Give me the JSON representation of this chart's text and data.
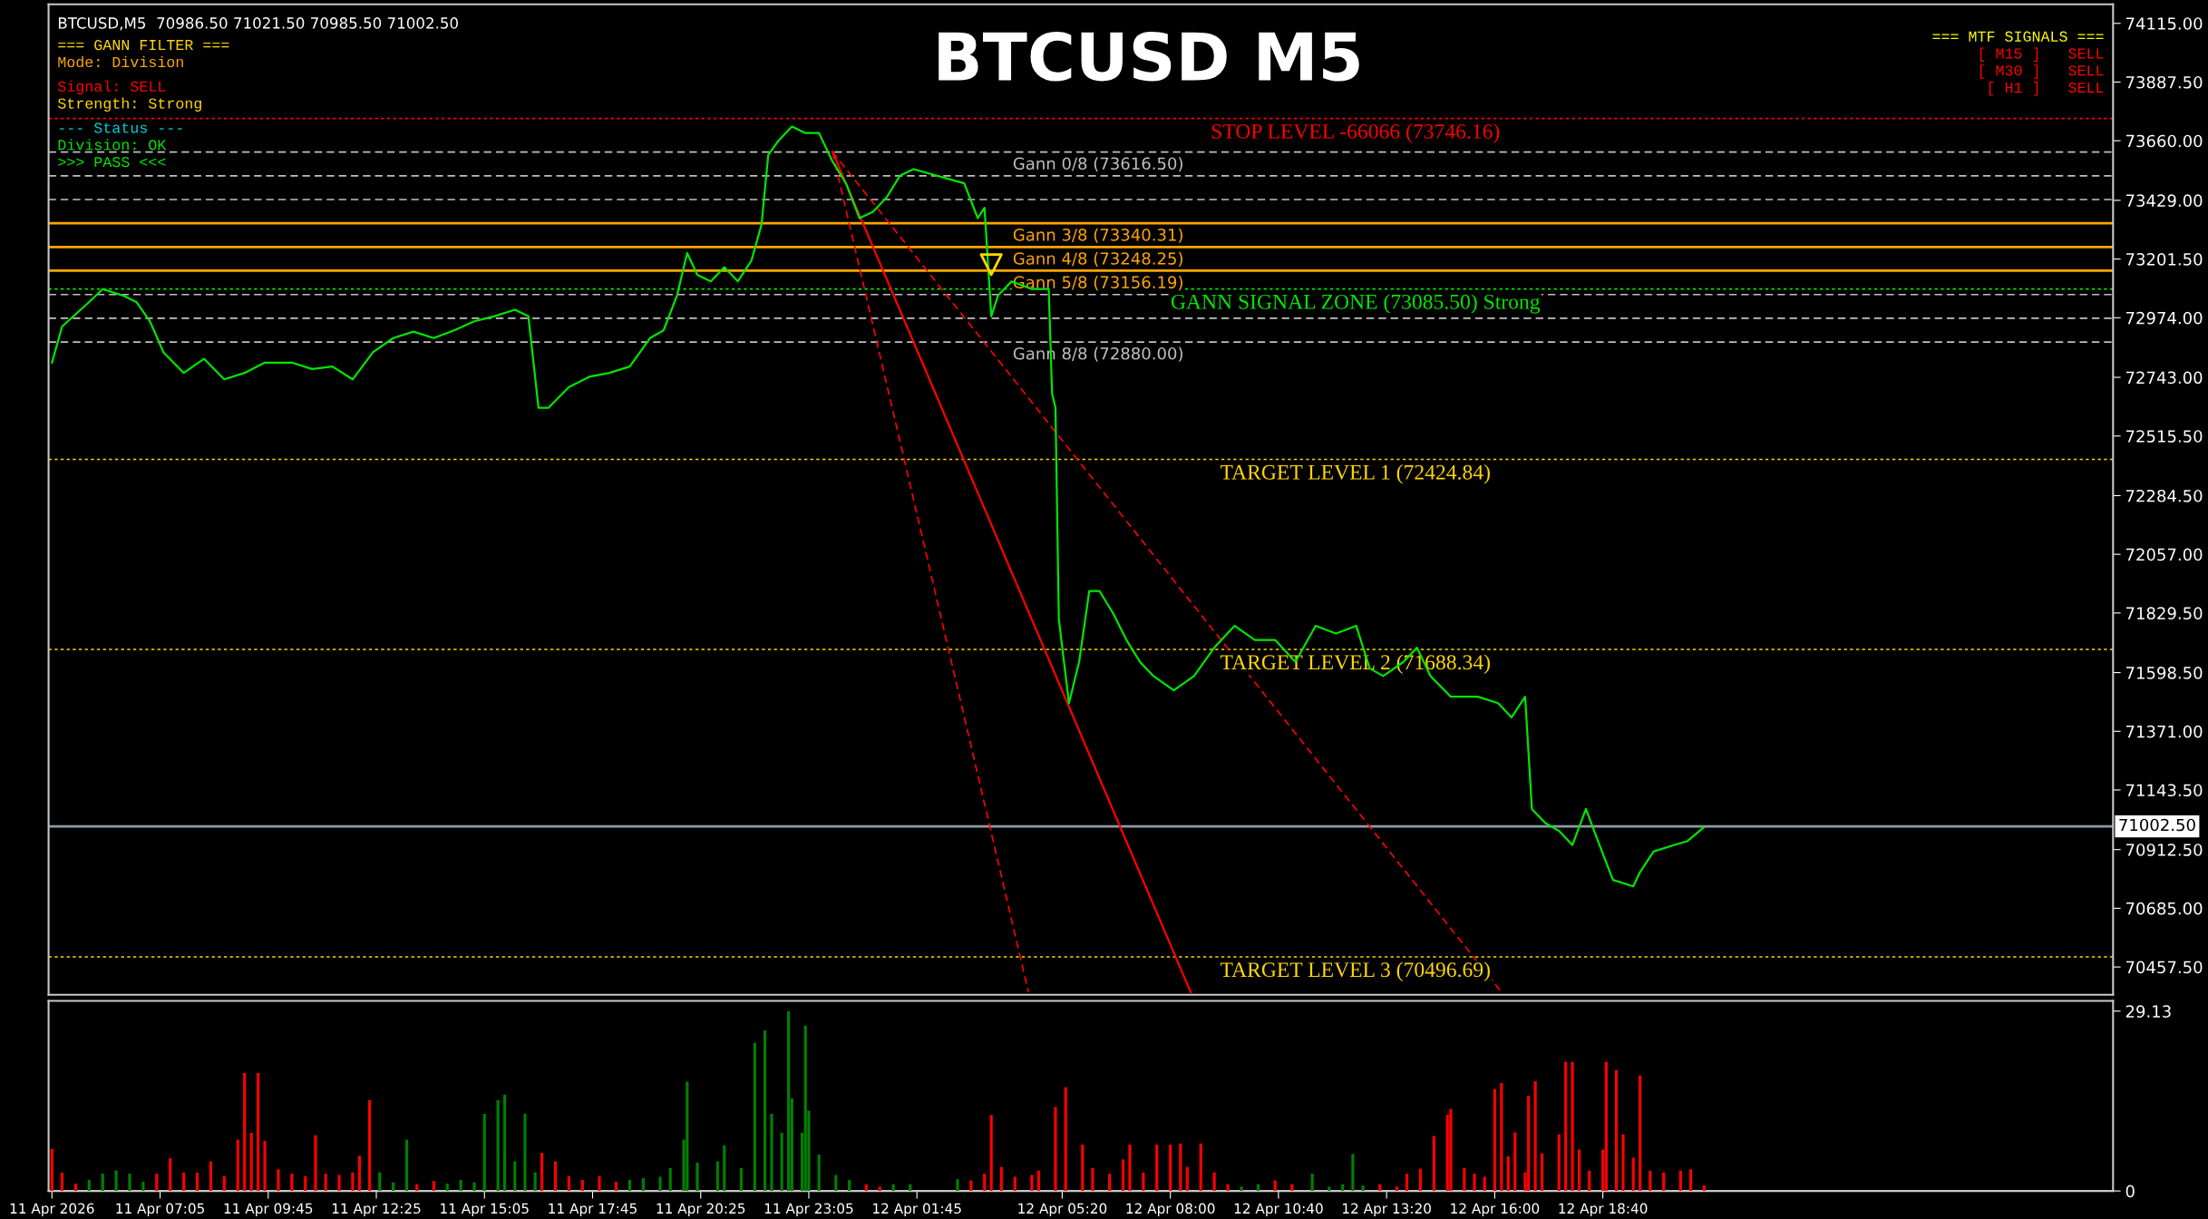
{
  "chart_data": [
    {
      "type": "line",
      "title": "BTCUSD M5",
      "annotations": [
        "BTCUSD,M5  70986.50 71021.50 70985.50 71002.50",
        "=== GANN FILTER ===",
        "Mode: Division",
        "Signal: SELL",
        "Strength: Strong",
        "--- Status ---",
        "Division: OK",
        ">>> PASS <<<",
        "=== MTF SIGNALS ===",
        "[ M15 ]   SELL",
        "[ M30 ]   SELL",
        "[ H1 ]   SELL"
      ],
      "xlim": [
        "2026-04-11T04:20",
        "2026-04-13T07:15"
      ],
      "ylim": [
        70350,
        74189
      ],
      "yticks": [
        {
          "value": 74115,
          "label": "74115.00"
        },
        {
          "value": 73887.5,
          "label": "73887.50"
        },
        {
          "value": 73660,
          "label": "73660.00"
        },
        {
          "value": 73429,
          "label": "73429.00"
        },
        {
          "value": 73201.5,
          "label": "73201.50"
        },
        {
          "value": 72974,
          "label": "72974.00"
        },
        {
          "value": 72743,
          "label": "72743.00"
        },
        {
          "value": 72515.5,
          "label": "72515.50"
        },
        {
          "value": 72284.5,
          "label": "72284.50"
        },
        {
          "value": 72057,
          "label": "72057.00"
        },
        {
          "value": 71829.5,
          "label": "71829.50"
        },
        {
          "value": 71598.5,
          "label": "71598.50"
        },
        {
          "value": 71371,
          "label": "71371.00"
        },
        {
          "value": 71143.5,
          "label": "71143.50"
        },
        {
          "value": 70912.5,
          "label": "70912.50"
        },
        {
          "value": 70685,
          "label": "70685.00"
        },
        {
          "value": 70457.5,
          "label": "70457.50"
        }
      ],
      "tick_labels": "y",
      "grid": false,
      "series": [
        {
          "type": "line",
          "color": "#00e600",
          "line_style": "solid",
          "x": [
            "2026-04-11T04:25",
            "2026-04-11T04:40",
            "2026-04-11T05:20",
            "2026-04-11T05:40",
            "2026-04-11T06:10",
            "2026-04-11T06:30",
            "2026-04-11T06:50",
            "2026-04-11T07:10",
            "2026-04-11T07:40",
            "2026-04-11T08:10",
            "2026-04-11T08:40",
            "2026-04-11T09:10",
            "2026-04-11T09:40",
            "2026-04-11T10:20",
            "2026-04-11T10:50",
            "2026-04-11T11:20",
            "2026-04-11T11:50",
            "2026-04-11T12:20",
            "2026-04-11T12:50",
            "2026-04-11T13:20",
            "2026-04-11T13:50",
            "2026-04-11T14:20",
            "2026-04-11T14:50",
            "2026-04-11T15:20",
            "2026-04-11T15:50",
            "2026-04-11T16:10",
            "2026-04-11T16:25",
            "2026-04-11T16:40",
            "2026-04-11T17:10",
            "2026-04-11T17:40",
            "2026-04-11T18:10",
            "2026-04-11T18:40",
            "2026-04-11T19:10",
            "2026-04-11T19:30",
            "2026-04-11T19:50",
            "2026-04-11T20:05",
            "2026-04-11T20:20",
            "2026-04-11T20:40",
            "2026-04-11T21:00",
            "2026-04-11T21:20",
            "2026-04-11T21:40",
            "2026-04-11T21:55",
            "2026-04-11T22:05",
            "2026-04-11T22:20",
            "2026-04-11T22:40",
            "2026-04-11T23:00",
            "2026-04-11T23:20",
            "2026-04-11T23:40",
            "2026-04-12T00:00",
            "2026-04-12T00:20",
            "2026-04-12T00:40",
            "2026-04-12T01:00",
            "2026-04-12T01:20",
            "2026-04-12T01:40",
            "2026-04-12T02:55",
            "2026-04-12T03:15",
            "2026-04-12T03:25",
            "2026-04-12T03:35",
            "2026-04-12T03:45",
            "2026-04-12T04:05",
            "2026-04-12T04:35",
            "2026-04-12T05:00",
            "2026-04-12T05:05",
            "2026-04-12T05:10",
            "2026-04-12T05:15",
            "2026-04-12T05:30",
            "2026-04-12T05:45",
            "2026-04-12T06:00",
            "2026-04-12T06:15",
            "2026-04-12T06:35",
            "2026-04-12T06:55",
            "2026-04-12T07:15",
            "2026-04-12T07:35",
            "2026-04-12T08:05",
            "2026-04-12T08:35",
            "2026-04-12T09:05",
            "2026-04-12T09:35",
            "2026-04-12T10:05",
            "2026-04-12T10:35",
            "2026-04-12T11:05",
            "2026-04-12T11:35",
            "2026-04-12T12:05",
            "2026-04-12T12:35",
            "2026-04-12T12:55",
            "2026-04-12T13:15",
            "2026-04-12T13:45",
            "2026-04-12T14:05",
            "2026-04-12T14:25",
            "2026-04-12T14:55",
            "2026-04-12T15:35",
            "2026-04-12T16:05",
            "2026-04-12T16:25",
            "2026-04-12T16:45",
            "2026-04-12T16:55",
            "2026-04-12T17:15",
            "2026-04-12T17:35",
            "2026-04-12T17:55",
            "2026-04-12T18:15",
            "2026-04-12T18:35",
            "2026-04-12T18:55",
            "2026-04-12T19:25",
            "2026-04-12T19:35",
            "2026-04-12T19:55",
            "2026-04-12T20:25",
            "2026-04-12T20:45",
            "2026-04-12T21:10"
          ],
          "values": [
            72800,
            72940,
            73035,
            73085,
            73060,
            73035,
            72960,
            72840,
            72760,
            72815,
            72735,
            72760,
            72800,
            72800,
            72775,
            72785,
            72735,
            72840,
            72895,
            72920,
            72895,
            72925,
            72960,
            72980,
            73005,
            72980,
            72625,
            72625,
            72705,
            72745,
            72760,
            72785,
            72895,
            72925,
            73060,
            73225,
            73140,
            73115,
            73170,
            73115,
            73195,
            73335,
            73605,
            73660,
            73715,
            73690,
            73690,
            73580,
            73495,
            73360,
            73385,
            73440,
            73525,
            73550,
            73495,
            73360,
            73400,
            72980,
            73060,
            73115,
            73085,
            73085,
            72680,
            72625,
            71805,
            71480,
            71640,
            71915,
            71915,
            71830,
            71725,
            71640,
            71585,
            71530,
            71585,
            71695,
            71780,
            71725,
            71725,
            71640,
            71780,
            71750,
            71780,
            71615,
            71585,
            71640,
            71695,
            71585,
            71505,
            71505,
            71480,
            71425,
            71505,
            71070,
            71015,
            70985,
            70930,
            71070,
            70930,
            70795,
            70770,
            70825,
            70905,
            70930,
            70945,
            71000
          ]
        },
        {
          "type": "line",
          "color": "#ff0000",
          "line_style": "solid",
          "x": [
            "2026-04-11T23:40",
            "2026-04-12T08:30"
          ],
          "values": [
            73617,
            70360
          ]
        },
        {
          "type": "line",
          "color": "#ff0000",
          "line_style": "dashed",
          "x": [
            "2026-04-11T23:40",
            "2026-04-12T04:30"
          ],
          "values": [
            73617,
            70360
          ]
        },
        {
          "type": "line",
          "color": "#ff0000",
          "line_style": "dashed",
          "x": [
            "2026-04-11T23:40",
            "2026-04-12T16:10"
          ],
          "values": [
            73617,
            70360
          ]
        },
        {
          "type": "scatter",
          "color": "#ffd700",
          "marker": "triangle",
          "x": [
            "2026-04-12T03:35"
          ],
          "values": [
            73180
          ]
        }
      ],
      "ref_lines": [
        {
          "axis": "y",
          "value": 73746.16,
          "label": "STOP LEVEL -66066 (73746.16)",
          "color": "#ff0000",
          "line_style": "dotted"
        },
        {
          "axis": "y",
          "value": 73616.5,
          "label": "Gann 0/8 (73616.50)",
          "color": "#c0c0c0",
          "line_style": "dashed"
        },
        {
          "axis": "y",
          "value": 73524,
          "label": null,
          "color": "#c0c0c0",
          "line_style": "dashed"
        },
        {
          "axis": "y",
          "value": 73432,
          "label": null,
          "color": "#c0c0c0",
          "line_style": "dashed"
        },
        {
          "axis": "y",
          "value": 73340.31,
          "label": "Gann 3/8 (73340.31)",
          "color": "#ffa500",
          "line_style": "solid"
        },
        {
          "axis": "y",
          "value": 73248.25,
          "label": "Gann 4/8 (73248.25)",
          "color": "#ffa500",
          "line_style": "solid"
        },
        {
          "axis": "y",
          "value": 73156.19,
          "label": "Gann 5/8 (73156.19)",
          "color": "#ffa500",
          "line_style": "solid"
        },
        {
          "axis": "y",
          "value": 73085.5,
          "label": "GANN SIGNAL ZONE (73085.50) Strong",
          "color": "#00e600",
          "line_style": "dotted"
        },
        {
          "axis": "y",
          "value": 73064,
          "label": null,
          "color": "#c0c0c0",
          "line_style": "dashed"
        },
        {
          "axis": "y",
          "value": 72972,
          "label": null,
          "color": "#c0c0c0",
          "line_style": "dashed"
        },
        {
          "axis": "y",
          "value": 72880,
          "label": "Gann 8/8 (72880.00)",
          "color": "#c0c0c0",
          "line_style": "dashed"
        },
        {
          "axis": "y",
          "value": 72424.84,
          "label": "TARGET LEVEL 1 (72424.84)",
          "color": "#ffd700",
          "line_style": "dotted"
        },
        {
          "axis": "y",
          "value": 71688.34,
          "label": "TARGET LEVEL 2 (71688.34)",
          "color": "#ffd700",
          "line_style": "dotted"
        },
        {
          "axis": "y",
          "value": 70496.69,
          "label": "TARGET LEVEL 3 (70496.69)",
          "color": "#ffd700",
          "line_style": "dotted"
        },
        {
          "axis": "y",
          "value": 71002.5,
          "label": "71002.50",
          "color": "#8c9aa8",
          "line_style": "solid"
        }
      ]
    },
    {
      "type": "bar",
      "xlim": [
        "2026-04-11T04:20",
        "2026-04-13T07:15"
      ],
      "xticks": [
        {
          "value": "2026-04-11T04:25",
          "label": "11 Apr 2026"
        },
        {
          "value": "2026-04-11T07:05",
          "label": "11 Apr 07:05"
        },
        {
          "value": "2026-04-11T09:45",
          "label": "11 Apr 09:45"
        },
        {
          "value": "2026-04-11T12:25",
          "label": "11 Apr 12:25"
        },
        {
          "value": "2026-04-11T15:05",
          "label": "11 Apr 15:05"
        },
        {
          "value": "2026-04-11T17:45",
          "label": "11 Apr 17:45"
        },
        {
          "value": "2026-04-11T20:25",
          "label": "11 Apr 20:25"
        },
        {
          "value": "2026-04-11T23:05",
          "label": "11 Apr 23:05"
        },
        {
          "value": "2026-04-12T01:45",
          "label": "12 Apr 01:45"
        },
        {
          "value": "2026-04-12T05:20",
          "label": "12 Apr 05:20"
        },
        {
          "value": "2026-04-12T08:00",
          "label": "12 Apr 08:00"
        },
        {
          "value": "2026-04-12T10:40",
          "label": "12 Apr 10:40"
        },
        {
          "value": "2026-04-12T13:20",
          "label": "12 Apr 13:20"
        },
        {
          "value": "2026-04-12T16:00",
          "label": "12 Apr 16:00"
        },
        {
          "value": "2026-04-12T18:40",
          "label": "12 Apr 18:40"
        }
      ],
      "ylim": [
        0,
        30.8
      ],
      "yticks": [
        0,
        29.13
      ],
      "grid": false,
      "x": [
        "2026-04-11T04:25",
        "2026-04-11T04:40",
        "2026-04-11T05:00",
        "2026-04-11T05:20",
        "2026-04-11T05:40",
        "2026-04-11T06:00",
        "2026-04-11T06:20",
        "2026-04-11T06:40",
        "2026-04-11T07:00",
        "2026-04-11T07:20",
        "2026-04-11T07:40",
        "2026-04-11T08:00",
        "2026-04-11T08:20",
        "2026-04-11T08:40",
        "2026-04-11T09:00",
        "2026-04-11T09:10",
        "2026-04-11T09:20",
        "2026-04-11T09:30",
        "2026-04-11T09:40",
        "2026-04-11T10:00",
        "2026-04-11T10:20",
        "2026-04-11T10:40",
        "2026-04-11T10:55",
        "2026-04-11T11:10",
        "2026-04-11T11:30",
        "2026-04-11T11:50",
        "2026-04-11T12:00",
        "2026-04-11T12:15",
        "2026-04-11T12:30",
        "2026-04-11T12:50",
        "2026-04-11T13:10",
        "2026-04-11T13:25",
        "2026-04-11T13:50",
        "2026-04-11T14:10",
        "2026-04-11T14:30",
        "2026-04-11T14:50",
        "2026-04-11T15:05",
        "2026-04-11T15:25",
        "2026-04-11T15:35",
        "2026-04-11T15:50",
        "2026-04-11T16:05",
        "2026-04-11T16:20",
        "2026-04-11T16:30",
        "2026-04-11T16:50",
        "2026-04-11T17:10",
        "2026-04-11T17:30",
        "2026-04-11T17:55",
        "2026-04-11T18:20",
        "2026-04-11T18:40",
        "2026-04-11T19:00",
        "2026-04-11T19:25",
        "2026-04-11T19:40",
        "2026-04-11T20:00",
        "2026-04-11T20:05",
        "2026-04-11T20:20",
        "2026-04-11T20:50",
        "2026-04-11T21:00",
        "2026-04-11T21:25",
        "2026-04-11T21:45",
        "2026-04-11T22:00",
        "2026-04-11T22:10",
        "2026-04-11T22:25",
        "2026-04-11T22:35",
        "2026-04-11T22:40",
        "2026-04-11T22:55",
        "2026-04-11T23:00",
        "2026-04-11T23:05",
        "2026-04-11T23:20",
        "2026-04-11T23:45",
        "2026-04-12T00:05",
        "2026-04-12T00:30",
        "2026-04-12T00:50",
        "2026-04-12T01:10",
        "2026-04-12T01:35",
        "2026-04-12T02:45",
        "2026-04-12T03:05",
        "2026-04-12T03:25",
        "2026-04-12T03:35",
        "2026-04-12T03:50",
        "2026-04-12T04:10",
        "2026-04-12T04:35",
        "2026-04-12T04:45",
        "2026-04-12T05:10",
        "2026-04-12T05:25",
        "2026-04-12T05:50",
        "2026-04-12T06:05",
        "2026-04-12T06:30",
        "2026-04-12T06:50",
        "2026-04-12T07:00",
        "2026-04-12T07:20",
        "2026-04-12T07:40",
        "2026-04-12T08:00",
        "2026-04-12T08:15",
        "2026-04-12T08:25",
        "2026-04-12T08:45",
        "2026-04-12T09:05",
        "2026-04-12T09:25",
        "2026-04-12T09:45",
        "2026-04-12T10:10",
        "2026-04-12T10:35",
        "2026-04-12T11:00",
        "2026-04-12T11:30",
        "2026-04-12T11:55",
        "2026-04-12T12:15",
        "2026-04-12T12:30",
        "2026-04-12T12:45",
        "2026-04-12T13:10",
        "2026-04-12T13:35",
        "2026-04-12T13:50",
        "2026-04-12T14:10",
        "2026-04-12T14:30",
        "2026-04-12T14:50",
        "2026-04-12T14:55",
        "2026-04-12T15:15",
        "2026-04-12T15:30",
        "2026-04-12T15:45",
        "2026-04-12T16:00",
        "2026-04-12T16:10",
        "2026-04-12T16:20",
        "2026-04-12T16:30",
        "2026-04-12T16:45",
        "2026-04-12T16:50",
        "2026-04-12T17:00",
        "2026-04-12T17:10",
        "2026-04-12T17:35",
        "2026-04-12T17:45",
        "2026-04-12T17:55",
        "2026-04-12T18:05",
        "2026-04-12T18:20",
        "2026-04-12T18:40",
        "2026-04-12T18:45",
        "2026-04-12T19:00",
        "2026-04-12T19:10",
        "2026-04-12T19:25",
        "2026-04-12T19:35",
        "2026-04-12T19:50",
        "2026-04-12T20:10",
        "2026-04-12T20:35",
        "2026-04-12T20:50",
        "2026-04-12T21:10"
      ],
      "values": [
        6.8,
        3.0,
        1.2,
        1.8,
        2.8,
        3.3,
        2.8,
        1.5,
        2.8,
        5.3,
        3.0,
        3.0,
        4.8,
        2.4,
        8.3,
        19.1,
        9.4,
        19.1,
        8.1,
        3.5,
        2.8,
        2.4,
        9.0,
        2.8,
        2.6,
        3.0,
        5.7,
        14.7,
        3.0,
        1.4,
        8.3,
        1.1,
        1.6,
        1.2,
        1.8,
        1.4,
        12.5,
        14.7,
        15.6,
        4.8,
        12.5,
        3.0,
        6.2,
        4.8,
        2.4,
        1.8,
        2.4,
        1.5,
        1.8,
        2.1,
        2.3,
        3.7,
        8.3,
        17.7,
        4.6,
        4.8,
        7.4,
        3.7,
        24.0,
        26.0,
        12.5,
        9.4,
        29.1,
        15.0,
        9.4,
        26.8,
        13.0,
        5.9,
        2.6,
        1.8,
        1.1,
        0.7,
        1.1,
        1.1,
        1.9,
        1.7,
        2.8,
        12.3,
        3.9,
        2.3,
        2.6,
        3.3,
        13.6,
        16.8,
        7.5,
        3.7,
        2.8,
        5.1,
        7.5,
        3.0,
        7.5,
        7.5,
        7.7,
        3.9,
        7.7,
        3.0,
        1.1,
        0.7,
        1.1,
        1.7,
        1.1,
        2.8,
        0.7,
        1.1,
        6.0,
        0.9,
        1.1,
        0.7,
        2.8,
        3.6,
        8.9,
        12.3,
        13.3,
        3.7,
        2.8,
        2.3,
        16.5,
        17.5,
        5.6,
        9.5,
        3.0,
        15.4,
        17.8,
        6.1,
        9.2,
        20.9,
        20.9,
        6.7,
        3.3,
        6.7,
        20.9,
        19.6,
        9.2,
        5.4,
        18.7,
        3.3,
        3.0,
        3.3,
        3.5,
        0.9
      ],
      "colors": [
        "#ff0000",
        "#ff0000",
        "#ff0000",
        "#008000",
        "#008000",
        "#008000",
        "#008000",
        "#008000",
        "#ff0000",
        "#ff0000",
        "#ff0000",
        "#ff0000",
        "#ff0000",
        "#ff0000",
        "#ff0000",
        "#ff0000",
        "#ff0000",
        "#ff0000",
        "#ff0000",
        "#ff0000",
        "#ff0000",
        "#ff0000",
        "#ff0000",
        "#ff0000",
        "#ff0000",
        "#ff0000",
        "#ff0000",
        "#ff0000",
        "#008000",
        "#008000",
        "#008000",
        "#ff0000",
        "#ff0000",
        "#008000",
        "#008000",
        "#008000",
        "#008000",
        "#008000",
        "#008000",
        "#008000",
        "#008000",
        "#008000",
        "#ff0000",
        "#ff0000",
        "#ff0000",
        "#ff0000",
        "#ff0000",
        "#ff0000",
        "#008000",
        "#008000",
        "#008000",
        "#008000",
        "#008000",
        "#008000",
        "#008000",
        "#008000",
        "#008000",
        "#008000",
        "#008000",
        "#008000",
        "#008000",
        "#008000",
        "#008000",
        "#008000",
        "#008000",
        "#008000",
        "#008000",
        "#008000",
        "#008000",
        "#008000",
        "#ff0000",
        "#ff0000",
        "#008000",
        "#008000",
        "#008000",
        "#ff0000",
        "#ff0000",
        "#ff0000",
        "#ff0000",
        "#ff0000",
        "#ff0000",
        "#ff0000",
        "#ff0000",
        "#ff0000",
        "#ff0000",
        "#ff0000",
        "#ff0000",
        "#ff0000",
        "#ff0000",
        "#ff0000",
        "#ff0000",
        "#ff0000",
        "#ff0000",
        "#ff0000",
        "#ff0000",
        "#ff0000",
        "#ff0000",
        "#008000",
        "#008000",
        "#ff0000",
        "#ff0000",
        "#008000",
        "#008000",
        "#008000",
        "#008000",
        "#008000",
        "#ff0000",
        "#ff0000",
        "#ff0000",
        "#ff0000",
        "#ff0000",
        "#ff0000",
        "#ff0000",
        "#ff0000",
        "#ff0000",
        "#ff0000",
        "#ff0000",
        "#ff0000",
        "#ff0000",
        "#ff0000",
        "#ff0000",
        "#ff0000",
        "#ff0000",
        "#ff0000",
        "#ff0000",
        "#ff0000",
        "#ff0000",
        "#ff0000",
        "#ff0000",
        "#ff0000",
        "#ff0000",
        "#ff0000",
        "#ff0000",
        "#ff0000",
        "#ff0000",
        "#ff0000",
        "#ff0000",
        "#ff0000",
        "#ff0000",
        "#ff0000"
      ]
    }
  ]
}
